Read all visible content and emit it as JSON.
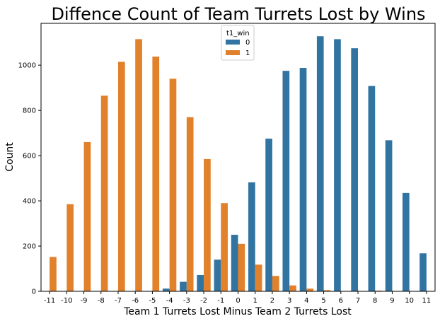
{
  "chart_data": {
    "type": "bar",
    "title": "Diffence Count of Team Turrets Lost by Wins",
    "xlabel": "Team 1 Turrets Lost Minus Team 2 Turrets Lost",
    "ylabel": "Count",
    "categories": [
      "-11",
      "-10",
      "-9",
      "-8",
      "-7",
      "-6",
      "-5",
      "-4",
      "-3",
      "-2",
      "-1",
      "0",
      "1",
      "2",
      "3",
      "4",
      "5",
      "6",
      "7",
      "8",
      "9",
      "10",
      "11"
    ],
    "y_ticks": [
      0,
      200,
      400,
      600,
      800,
      1000
    ],
    "ylim": [
      0,
      1185
    ],
    "grid": false,
    "legend": {
      "title": "t1_win",
      "placement": "top-center"
    },
    "series": [
      {
        "name": "0",
        "color": "#3274a1",
        "values": [
          0,
          0,
          0,
          0,
          0,
          0,
          0,
          12,
          42,
          72,
          140,
          250,
          482,
          675,
          975,
          988,
          1128,
          1115,
          1075,
          908,
          668,
          435,
          168
        ]
      },
      {
        "name": "1",
        "color": "#e1812c",
        "values": [
          152,
          385,
          660,
          865,
          1015,
          1115,
          1038,
          940,
          770,
          585,
          390,
          210,
          118,
          68,
          26,
          12,
          5,
          0,
          0,
          3,
          0,
          0,
          0
        ]
      }
    ]
  }
}
